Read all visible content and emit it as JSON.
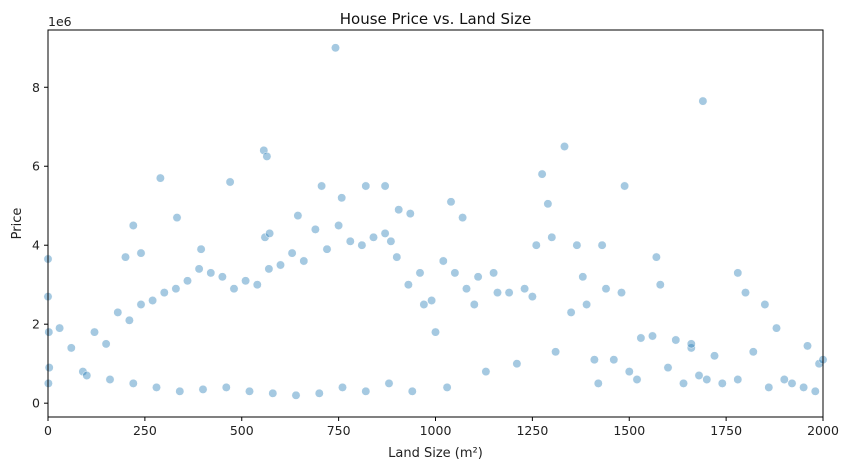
{
  "chart_data": {
    "type": "scatter",
    "title": "House Price vs. Land Size",
    "xlabel": "Land Size (m²)",
    "ylabel": "Price",
    "y_offset_label": "1e6",
    "xlim": [
      0,
      2000
    ],
    "ylim": [
      -350000,
      9450000
    ],
    "x_ticks": [
      0,
      250,
      500,
      750,
      1000,
      1250,
      1500,
      1750,
      2000
    ],
    "x_tick_labels": [
      "0",
      "250",
      "500",
      "750",
      "1000",
      "1250",
      "1500",
      "1750",
      "2000"
    ],
    "y_ticks": [
      0,
      2000000,
      4000000,
      6000000,
      8000000
    ],
    "y_tick_labels": [
      "0",
      "2",
      "4",
      "6",
      "8"
    ],
    "grid": false,
    "legend": "none",
    "point_color": "#1f77b4",
    "point_opacity": 0.4,
    "series": [
      {
        "x": [
          742,
          1690,
          557,
          565,
          1333,
          290,
          1275,
          470,
          1488,
          758,
          820,
          706,
          870,
          1290,
          1040,
          333,
          220,
          560,
          1070,
          645,
          905,
          935,
          1300,
          200,
          395,
          240,
          572,
          885,
          1260,
          1365,
          1430,
          1660,
          1780,
          1850,
          1960,
          1530,
          1620,
          1720,
          1880,
          1990,
          1440,
          1390,
          1230,
          1160,
          1110,
          1190,
          1480,
          1570,
          1500,
          1580,
          1700,
          1800,
          1780,
          1900,
          2000,
          1950,
          1660,
          1410,
          1310,
          1350,
          1250,
          1150,
          1080,
          1020,
          1380,
          1460,
          1520,
          1560,
          1600,
          1640,
          1680,
          1740,
          1820,
          1860,
          1920,
          1980,
          1420,
          1210,
          1130,
          1000,
          970,
          0,
          0,
          2,
          3,
          1,
          60,
          120,
          180,
          240,
          300,
          360,
          420,
          480,
          540,
          600,
          660,
          720,
          780,
          840,
          900,
          960,
          30,
          90,
          150,
          210,
          270,
          330,
          390,
          450,
          510,
          570,
          630,
          690,
          750,
          810,
          870,
          930,
          990,
          1050,
          1100,
          100,
          160,
          220,
          280,
          340,
          400,
          460,
          520,
          580,
          640,
          700,
          760,
          820,
          880,
          940,
          1030
        ],
        "y": [
          9000000,
          7650000,
          6400000,
          6250000,
          6500000,
          5700000,
          5800000,
          5600000,
          5500000,
          5200000,
          5500000,
          5500000,
          5500000,
          5050000,
          5100000,
          4700000,
          4500000,
          4200000,
          4700000,
          4750000,
          4900000,
          4800000,
          4200000,
          3700000,
          3900000,
          3800000,
          4300000,
          4100000,
          4000000,
          4000000,
          4000000,
          1400000,
          3300000,
          2500000,
          1450000,
          1650000,
          1600000,
          1200000,
          1900000,
          1000000,
          2900000,
          2500000,
          2900000,
          2800000,
          3200000,
          2800000,
          2800000,
          3700000,
          800000,
          3000000,
          600000,
          2800000,
          600000,
          600000,
          1100000,
          400000,
          1500000,
          1100000,
          1300000,
          2300000,
          2700000,
          3300000,
          2900000,
          3600000,
          3200000,
          1100000,
          600000,
          1700000,
          900000,
          500000,
          700000,
          500000,
          1300000,
          400000,
          500000,
          300000,
          500000,
          1000000,
          800000,
          1800000,
          2500000,
          3650000,
          2700000,
          1800000,
          900000,
          500000,
          1400000,
          1800000,
          2300000,
          2500000,
          2800000,
          3100000,
          3300000,
          2900000,
          3000000,
          3500000,
          3600000,
          3900000,
          4100000,
          4200000,
          3700000,
          3300000,
          1900000,
          800000,
          1500000,
          2100000,
          2600000,
          2900000,
          3400000,
          3200000,
          3100000,
          3400000,
          3800000,
          4400000,
          4500000,
          4000000,
          4300000,
          3000000,
          2600000,
          3300000,
          2500000,
          700000,
          600000,
          500000,
          400000,
          300000,
          350000,
          400000,
          300000,
          250000,
          200000,
          250000,
          400000,
          300000,
          500000,
          300000,
          400000
        ]
      }
    ]
  }
}
